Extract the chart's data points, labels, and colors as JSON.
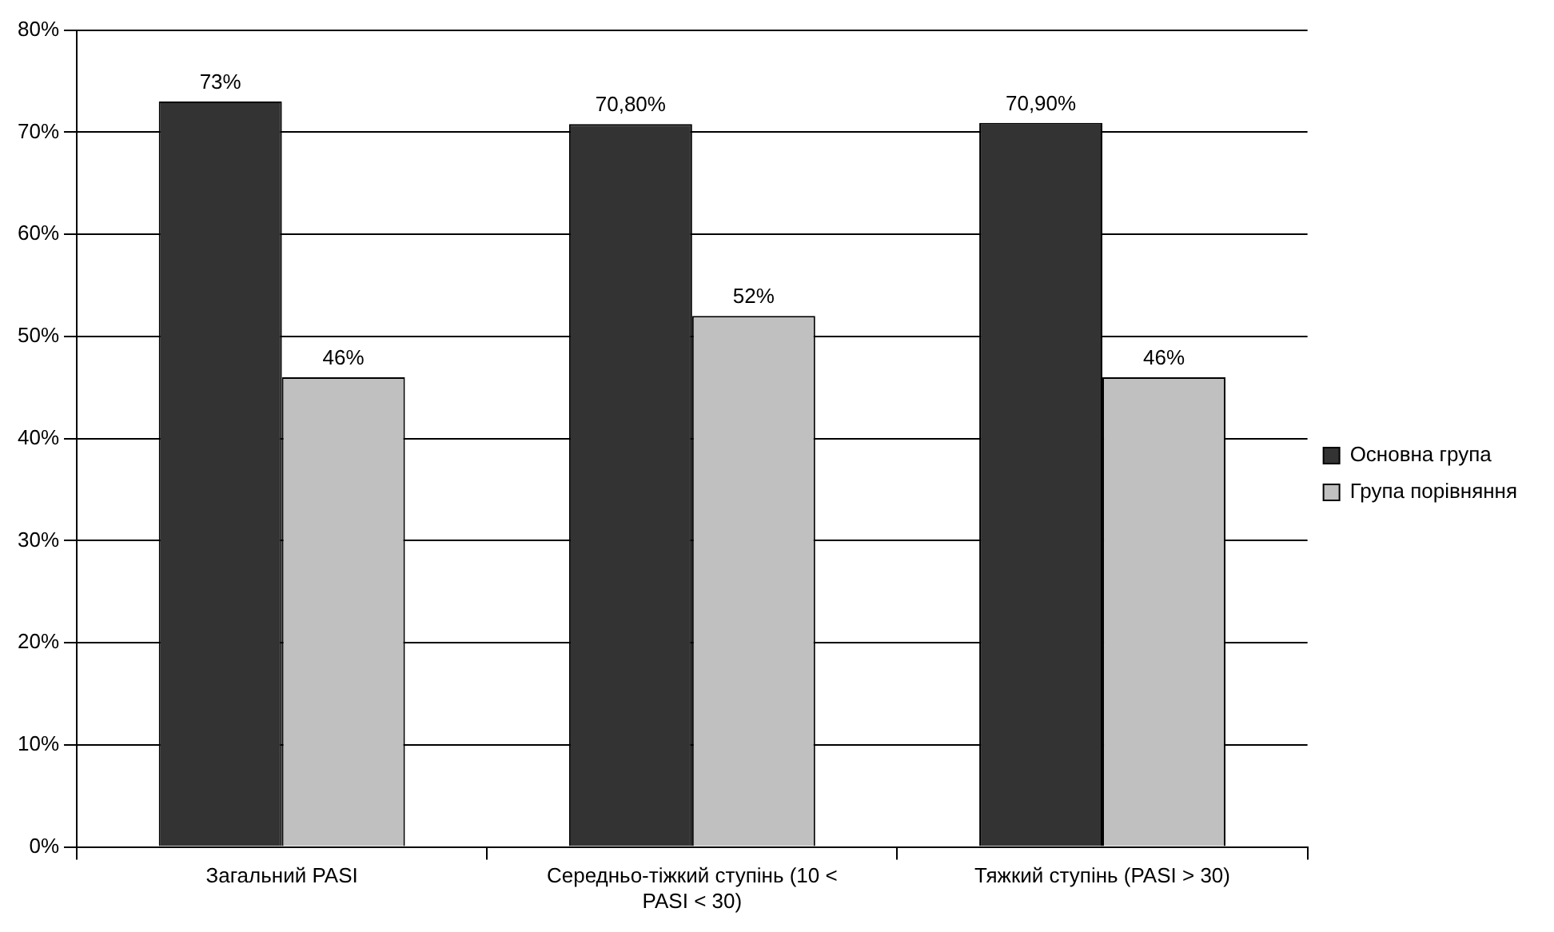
{
  "chart_data": {
    "type": "bar",
    "categories": [
      "Загальний PASI",
      "Середньо-тіжкий ступінь (10 < PASI < 30)",
      "Тяжкий ступінь (PASI > 30)"
    ],
    "series": [
      {
        "name": "Основна група",
        "color": "#333333",
        "values": [
          73,
          70.8,
          70.9
        ],
        "value_labels": [
          "73%",
          "70,80%",
          "70,90%"
        ]
      },
      {
        "name": "Група порівняння",
        "color": "#c0c0c0",
        "values": [
          46,
          52,
          46
        ],
        "value_labels": [
          "46%",
          "52%",
          "46%"
        ]
      }
    ],
    "ylim": [
      0,
      80
    ],
    "yticks": [
      {
        "value": 0,
        "label": "0%"
      },
      {
        "value": 10,
        "label": "10%"
      },
      {
        "value": 20,
        "label": "20%"
      },
      {
        "value": 30,
        "label": "30%"
      },
      {
        "value": 40,
        "label": "40%"
      },
      {
        "value": 50,
        "label": "50%"
      },
      {
        "value": 60,
        "label": "60%"
      },
      {
        "value": 70,
        "label": "70%"
      },
      {
        "value": 80,
        "label": "80%"
      }
    ],
    "grid": "y",
    "legend": "right"
  }
}
